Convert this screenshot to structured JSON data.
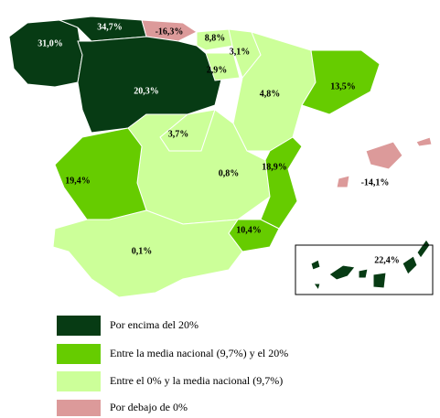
{
  "regions": [
    {
      "label": "31,0%",
      "color": "#073b14"
    },
    {
      "label": "34,7%",
      "color": "#073b14"
    },
    {
      "label": "-16,3%",
      "color": "#dc9a9a"
    },
    {
      "label": "20,3%",
      "color": "#073b14"
    },
    {
      "label": "8,8%",
      "color": "#ccff99"
    },
    {
      "label": "3,1%",
      "color": "#ccff99"
    },
    {
      "label": "2,9%",
      "color": "#ccff99"
    },
    {
      "label": "4,8%",
      "color": "#ccff99"
    },
    {
      "label": "13,5%",
      "color": "#66cc00"
    },
    {
      "label": "3,7%",
      "color": "#ccff99"
    },
    {
      "label": "0,8%",
      "color": "#ccff99"
    },
    {
      "label": "18,9%",
      "color": "#66cc00"
    },
    {
      "label": "19,4%",
      "color": "#66cc00"
    },
    {
      "label": "10,4%",
      "color": "#66cc00"
    },
    {
      "label": "0,1%",
      "color": "#ccff99"
    },
    {
      "label": "-14,1%",
      "color": "#dc9a9a"
    },
    {
      "label": "22,4%",
      "color": "#073b14"
    }
  ],
  "legend": [
    {
      "label": "Por encima del 20%",
      "color": "#073b14"
    },
    {
      "label": "Entre la media nacional (9,7%) y el 20%",
      "color": "#66cc00"
    },
    {
      "label": "Entre el 0% y la media nacional (9,7%)",
      "color": "#ccff99"
    },
    {
      "label": "Por debajo de 0%",
      "color": "#dc9a9a"
    }
  ]
}
